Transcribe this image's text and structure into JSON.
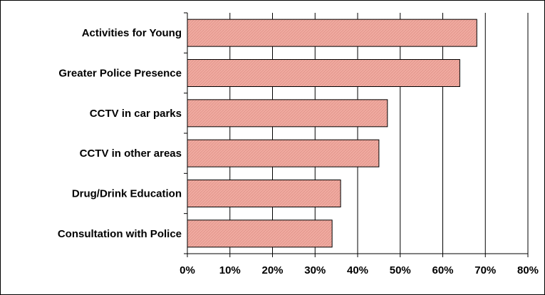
{
  "chart_data": {
    "type": "bar",
    "orientation": "horizontal",
    "categories": [
      "Activities for Young",
      "Greater Police Presence",
      "CCTV in car parks",
      "CCTV in other areas",
      "Drug/Drink Education",
      "Consultation with Police"
    ],
    "values": [
      68,
      64,
      47,
      45,
      36,
      34
    ],
    "unit": "%",
    "xlim": [
      0,
      80
    ],
    "xticks": [
      "0%",
      "10%",
      "20%",
      "30%",
      "40%",
      "50%",
      "60%",
      "70%",
      "80%"
    ],
    "grid": "vertical",
    "legend": "none",
    "bar_color": "#f0aaa0",
    "bar_border": "#000000",
    "grid_color": "#000000"
  }
}
